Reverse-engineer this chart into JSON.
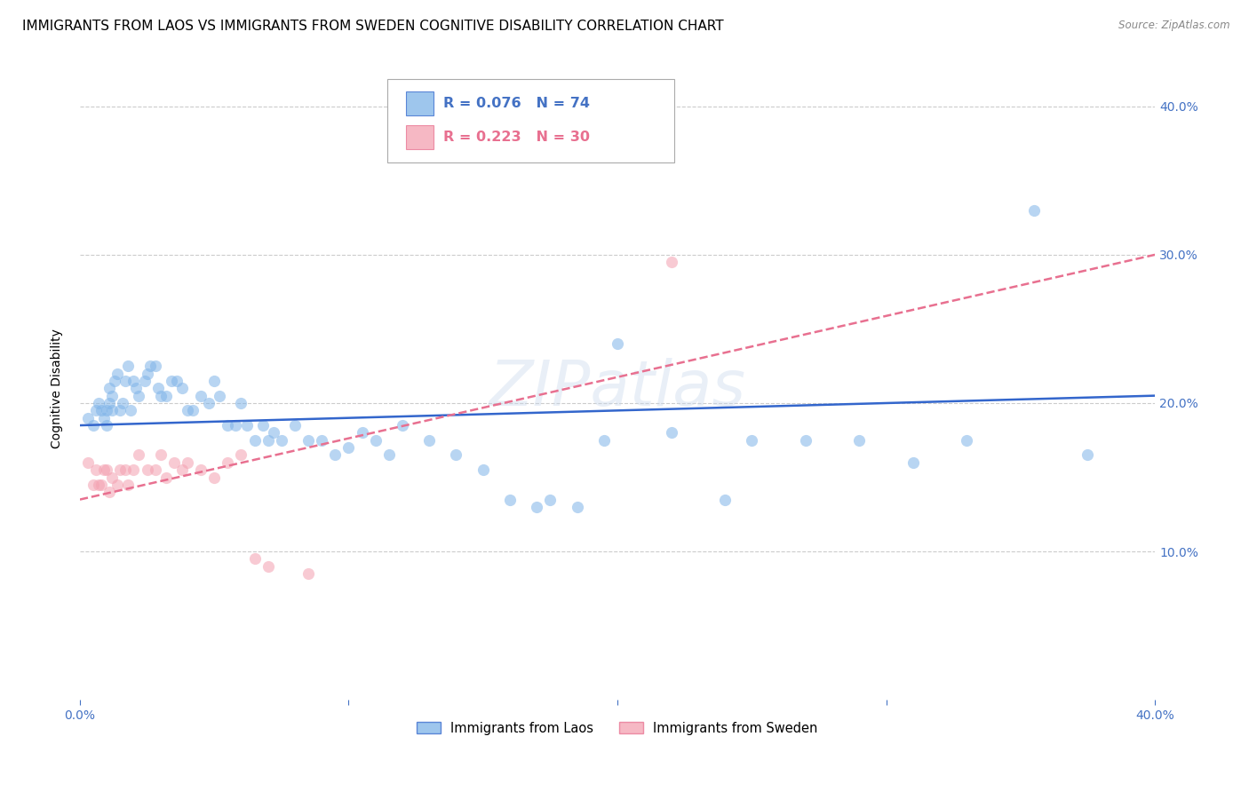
{
  "title": "IMMIGRANTS FROM LAOS VS IMMIGRANTS FROM SWEDEN COGNITIVE DISABILITY CORRELATION CHART",
  "source": "Source: ZipAtlas.com",
  "ylabel": "Cognitive Disability",
  "ytick_values": [
    0.1,
    0.2,
    0.3,
    0.4
  ],
  "xlim": [
    0.0,
    0.4
  ],
  "ylim": [
    0.0,
    0.42
  ],
  "legend1_R": "0.076",
  "legend1_N": "74",
  "legend2_R": "0.223",
  "legend2_N": "30",
  "legend_label1": "Immigrants from Laos",
  "legend_label2": "Immigrants from Sweden",
  "blue_color": "#7EB3E8",
  "pink_color": "#F4A0B0",
  "trendline_blue": "#3366CC",
  "trendline_pink": "#E87090",
  "laos_x": [
    0.003,
    0.005,
    0.006,
    0.007,
    0.008,
    0.009,
    0.01,
    0.01,
    0.011,
    0.011,
    0.012,
    0.012,
    0.013,
    0.014,
    0.015,
    0.016,
    0.017,
    0.018,
    0.019,
    0.02,
    0.021,
    0.022,
    0.024,
    0.025,
    0.026,
    0.028,
    0.029,
    0.03,
    0.032,
    0.034,
    0.036,
    0.038,
    0.04,
    0.042,
    0.045,
    0.048,
    0.05,
    0.052,
    0.055,
    0.058,
    0.06,
    0.062,
    0.065,
    0.068,
    0.07,
    0.072,
    0.075,
    0.08,
    0.085,
    0.09,
    0.095,
    0.1,
    0.105,
    0.11,
    0.115,
    0.12,
    0.13,
    0.14,
    0.15,
    0.16,
    0.17,
    0.175,
    0.185,
    0.195,
    0.2,
    0.22,
    0.24,
    0.25,
    0.27,
    0.29,
    0.31,
    0.33,
    0.355,
    0.375
  ],
  "laos_y": [
    0.19,
    0.185,
    0.195,
    0.2,
    0.195,
    0.19,
    0.195,
    0.185,
    0.2,
    0.21,
    0.195,
    0.205,
    0.215,
    0.22,
    0.195,
    0.2,
    0.215,
    0.225,
    0.195,
    0.215,
    0.21,
    0.205,
    0.215,
    0.22,
    0.225,
    0.225,
    0.21,
    0.205,
    0.205,
    0.215,
    0.215,
    0.21,
    0.195,
    0.195,
    0.205,
    0.2,
    0.215,
    0.205,
    0.185,
    0.185,
    0.2,
    0.185,
    0.175,
    0.185,
    0.175,
    0.18,
    0.175,
    0.185,
    0.175,
    0.175,
    0.165,
    0.17,
    0.18,
    0.175,
    0.165,
    0.185,
    0.175,
    0.165,
    0.155,
    0.135,
    0.13,
    0.135,
    0.13,
    0.175,
    0.24,
    0.18,
    0.135,
    0.175,
    0.175,
    0.175,
    0.16,
    0.175,
    0.33,
    0.165
  ],
  "sweden_x": [
    0.003,
    0.005,
    0.006,
    0.007,
    0.008,
    0.009,
    0.01,
    0.011,
    0.012,
    0.014,
    0.015,
    0.017,
    0.018,
    0.02,
    0.022,
    0.025,
    0.028,
    0.03,
    0.032,
    0.035,
    0.038,
    0.04,
    0.045,
    0.05,
    0.055,
    0.06,
    0.065,
    0.07,
    0.085,
    0.22
  ],
  "sweden_y": [
    0.16,
    0.145,
    0.155,
    0.145,
    0.145,
    0.155,
    0.155,
    0.14,
    0.15,
    0.145,
    0.155,
    0.155,
    0.145,
    0.155,
    0.165,
    0.155,
    0.155,
    0.165,
    0.15,
    0.16,
    0.155,
    0.16,
    0.155,
    0.15,
    0.16,
    0.165,
    0.095,
    0.09,
    0.085,
    0.295
  ],
  "laos_trend_x": [
    0.0,
    0.4
  ],
  "laos_trend_y": [
    0.185,
    0.205
  ],
  "sweden_trend_x": [
    0.0,
    0.4
  ],
  "sweden_trend_y": [
    0.135,
    0.3
  ],
  "watermark": "ZIPatlas",
  "marker_size": 90,
  "marker_alpha": 0.55,
  "background_color": "#FFFFFF",
  "grid_color": "#CCCCCC",
  "axis_label_color": "#4472C4",
  "title_fontsize": 11,
  "axis_fontsize": 10
}
